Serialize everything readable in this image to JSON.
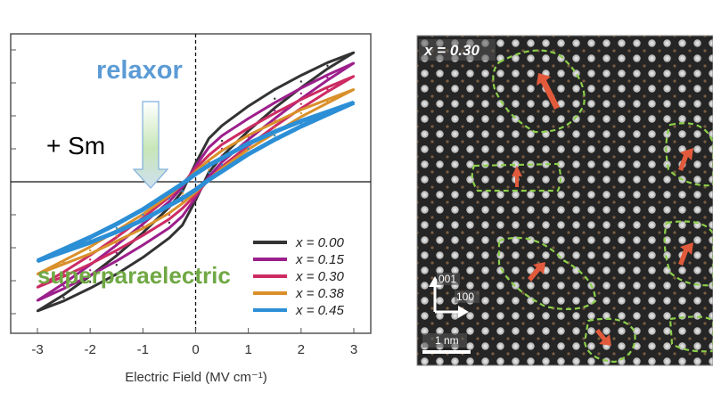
{
  "chart_data": [
    {
      "type": "line",
      "title": "",
      "xlabel": "Electric Field (MV cm⁻¹)",
      "ylabel": "",
      "xlim": [
        -3.0,
        3.0
      ],
      "ylim": [
        -1.0,
        1.0
      ],
      "xticks": [
        "-3",
        "-2",
        "-1",
        "0",
        "1",
        "2",
        "3"
      ],
      "grid": false,
      "legend_position": "bottom-right",
      "series": [
        {
          "name": "x = 0.00",
          "color": "#333333",
          "x": [
            -3.0,
            -2.5,
            -2.0,
            -1.5,
            -1.0,
            -0.5,
            -0.25,
            0.0,
            0.25,
            0.5,
            1.0,
            1.5,
            2.0,
            2.5,
            3.0
          ],
          "y": [
            -0.98,
            -0.88,
            -0.76,
            -0.63,
            -0.48,
            -0.31,
            -0.2,
            0.0,
            0.2,
            0.31,
            0.48,
            0.63,
            0.76,
            0.88,
            0.98
          ]
        },
        {
          "name": "x = 0.15",
          "color": "#9c1f8c",
          "x": [
            -3.0,
            -2.5,
            -2.0,
            -1.5,
            -1.0,
            -0.5,
            -0.25,
            0.0,
            0.25,
            0.5,
            1.0,
            1.5,
            2.0,
            2.5,
            3.0
          ],
          "y": [
            -0.9,
            -0.79,
            -0.67,
            -0.54,
            -0.4,
            -0.25,
            -0.15,
            0.0,
            0.15,
            0.25,
            0.4,
            0.54,
            0.67,
            0.79,
            0.9
          ]
        },
        {
          "name": "x = 0.30",
          "color": "#cc2b63",
          "x": [
            -3.0,
            -2.5,
            -2.0,
            -1.5,
            -1.0,
            -0.5,
            -0.25,
            0.0,
            0.25,
            0.5,
            1.0,
            1.5,
            2.0,
            2.5,
            3.0
          ],
          "y": [
            -0.8,
            -0.7,
            -0.59,
            -0.47,
            -0.34,
            -0.2,
            -0.11,
            0.0,
            0.11,
            0.2,
            0.34,
            0.47,
            0.59,
            0.7,
            0.8
          ]
        },
        {
          "name": "x = 0.38",
          "color": "#d9902a",
          "x": [
            -3.0,
            -2.5,
            -2.0,
            -1.5,
            -1.0,
            -0.5,
            -0.25,
            0.0,
            0.25,
            0.5,
            1.0,
            1.5,
            2.0,
            2.5,
            3.0
          ],
          "y": [
            -0.7,
            -0.61,
            -0.52,
            -0.41,
            -0.3,
            -0.17,
            -0.09,
            0.0,
            0.09,
            0.17,
            0.3,
            0.41,
            0.52,
            0.61,
            0.7
          ]
        },
        {
          "name": "x = 0.45",
          "color": "#2c8fd6",
          "x": [
            -3.0,
            -2.5,
            -2.0,
            -1.5,
            -1.0,
            -0.5,
            -0.25,
            0.0,
            0.25,
            0.5,
            1.0,
            1.5,
            2.0,
            2.5,
            3.0
          ],
          "y": [
            -0.6,
            -0.52,
            -0.44,
            -0.35,
            -0.25,
            -0.13,
            -0.07,
            0.0,
            0.07,
            0.13,
            0.25,
            0.35,
            0.44,
            0.52,
            0.6
          ]
        }
      ],
      "annotations": {
        "relaxor": {
          "text": "relaxor",
          "color": "#5b9bd5"
        },
        "sm": {
          "text": "+ Sm"
        },
        "superparaelectric": {
          "text": "superparaelectric",
          "color": "#70a844"
        }
      }
    }
  ],
  "image_panel": {
    "label": "x = 0.30",
    "axis_label_a": "001",
    "axis_label_b": "100",
    "scale_bar": "1 nm",
    "region_color": "#8ccf4a",
    "arrow_color": "#e25a3c"
  }
}
